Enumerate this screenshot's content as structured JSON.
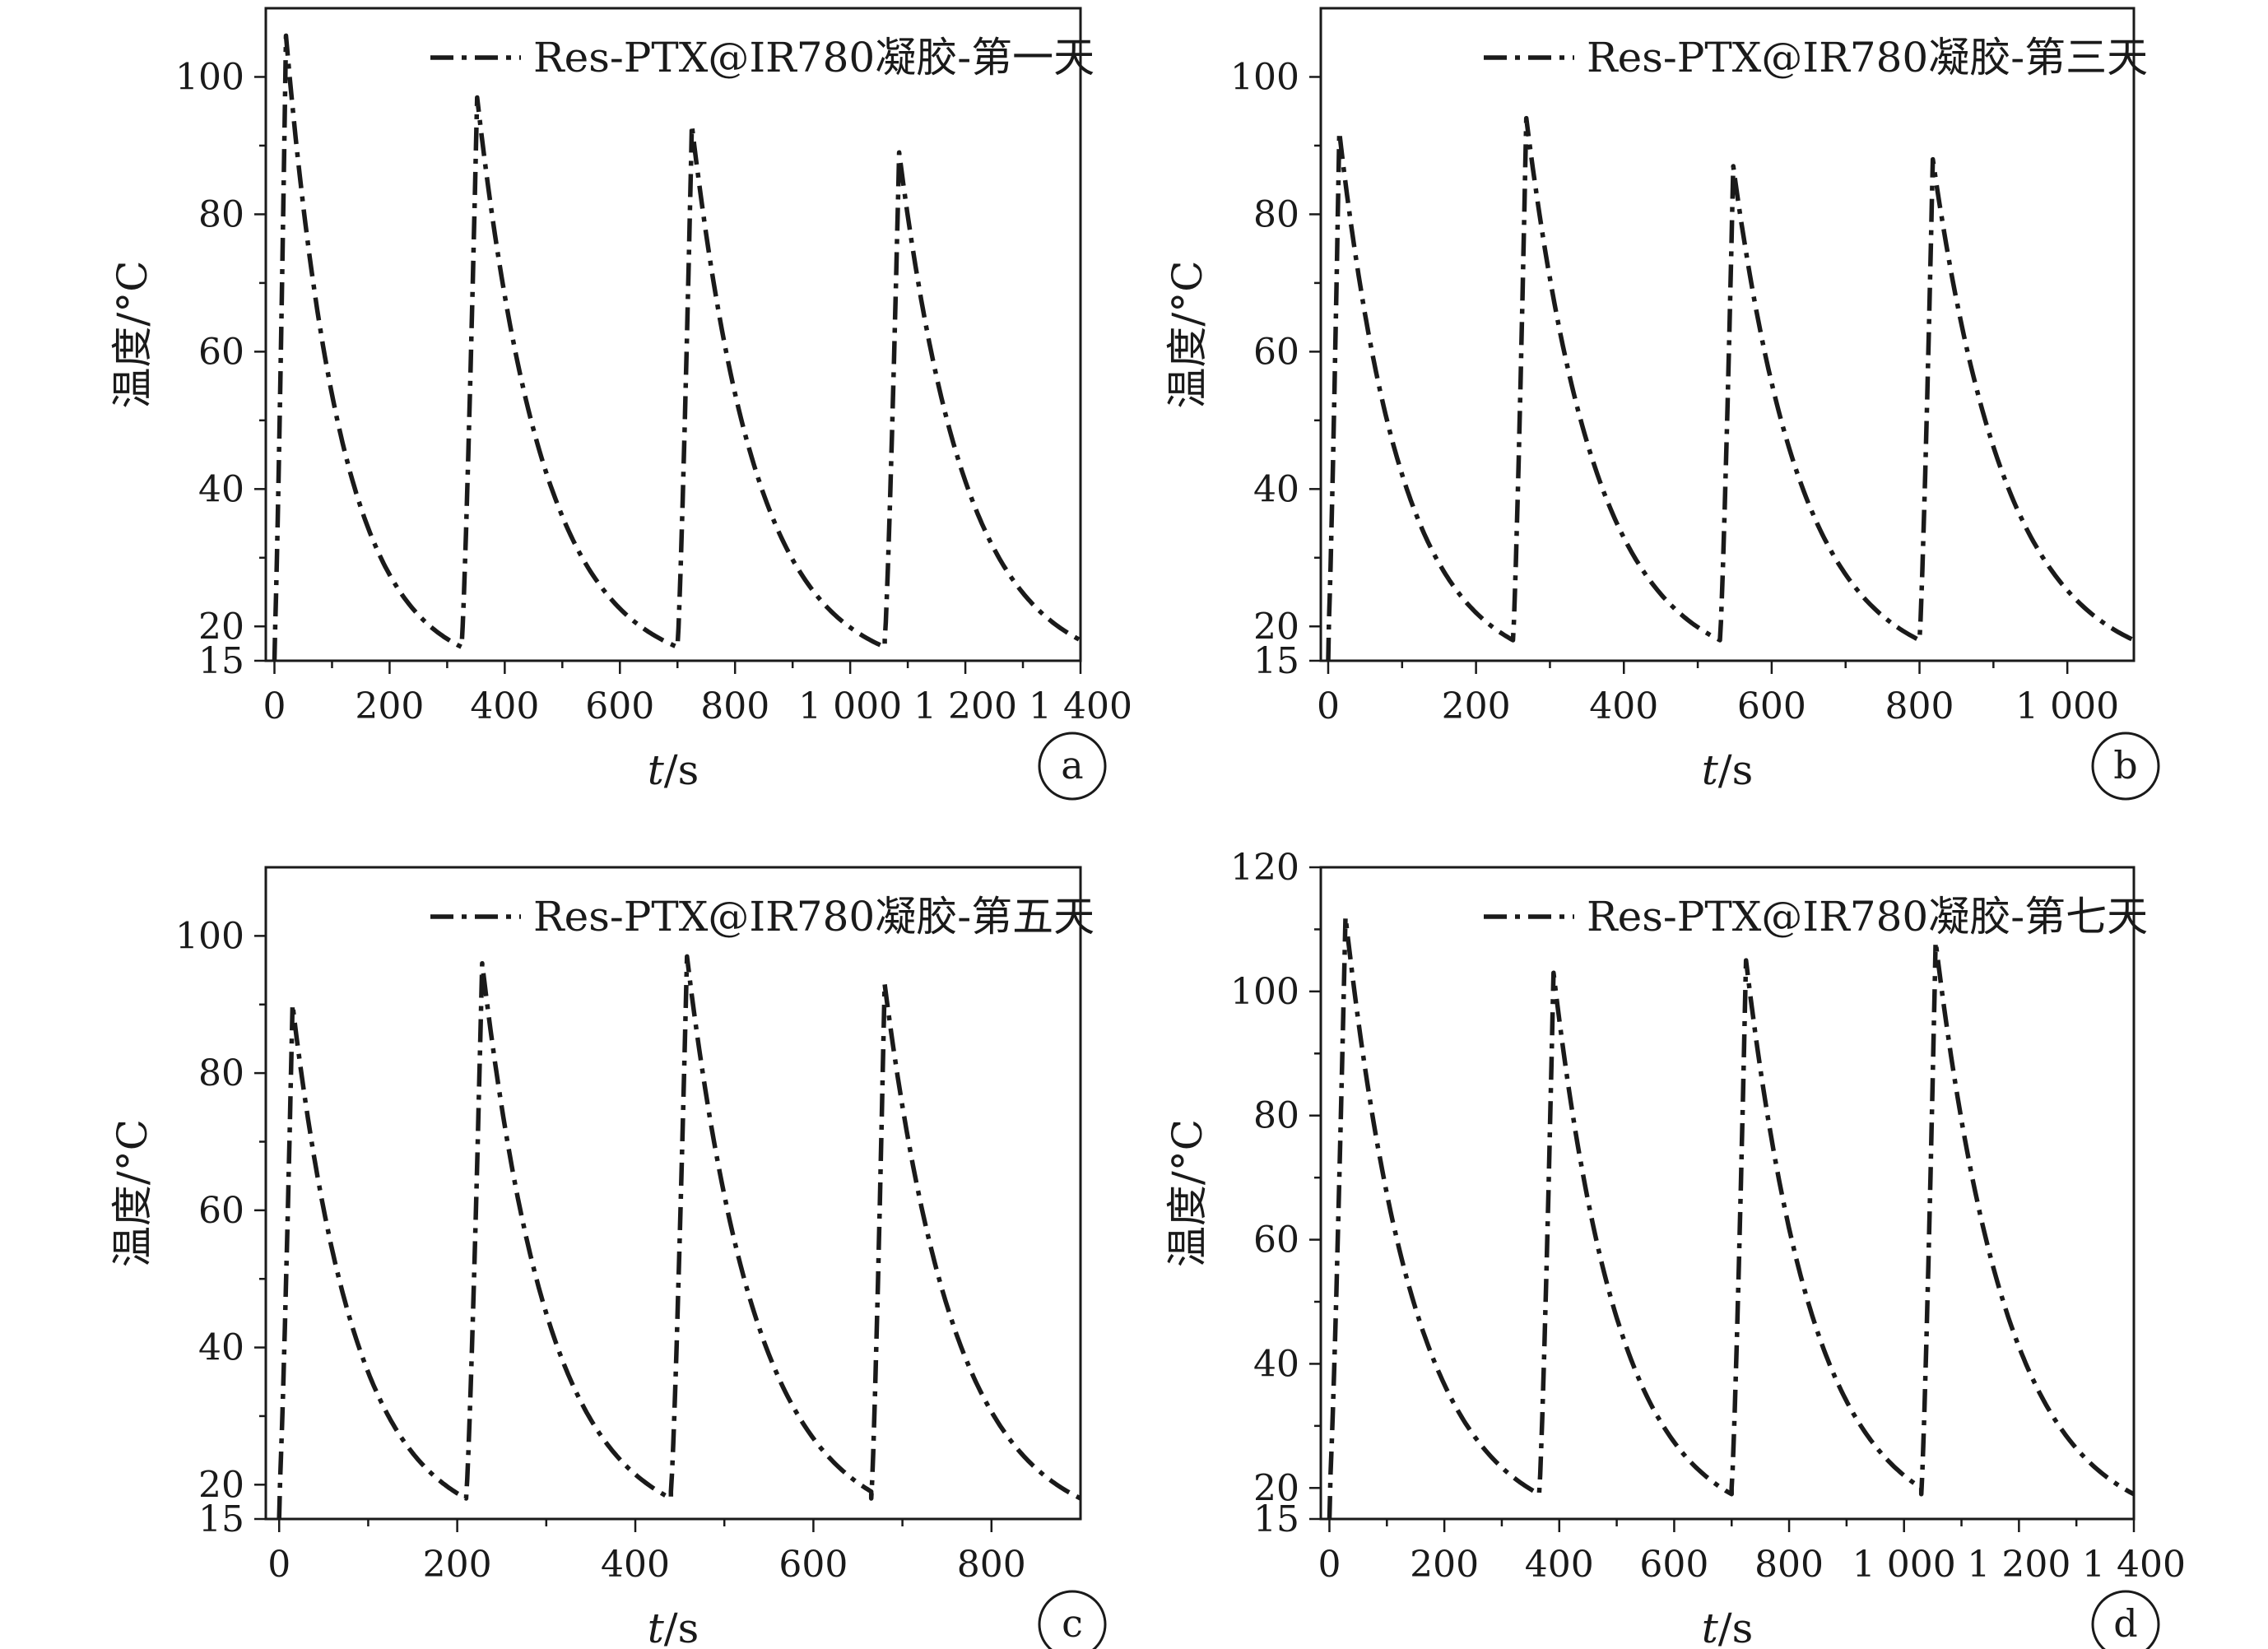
{
  "chart_data": [
    {
      "type": "line",
      "panel": "a",
      "xlabel_italic": "t",
      "xlabel_unit": "/s",
      "ylabel": "温度/°C",
      "xlim": [
        -15,
        1400
      ],
      "ylim": [
        15,
        110
      ],
      "xticks": [
        0,
        200,
        400,
        600,
        800,
        1000,
        1200,
        1400
      ],
      "xtick_labels": [
        "0",
        "200",
        "400",
        "600",
        "800",
        "1 000",
        "1 200",
        "1 400"
      ],
      "yticks": [
        15,
        20,
        40,
        60,
        80,
        100
      ],
      "ytick_labels": [
        "15",
        "20",
        "40",
        "60",
        "80",
        "100"
      ],
      "legend_loc": "top-right",
      "series": [
        {
          "name": "Res-PTX@IR780凝胶-第一天",
          "cycles": [
            {
              "t_start": 0,
              "t_peak": 20,
              "peak": 106,
              "t_end": 325,
              "end": 17
            },
            {
              "t_start": 325,
              "t_peak": 352,
              "peak": 97,
              "t_end": 700,
              "end": 17
            },
            {
              "t_start": 700,
              "t_peak": 725,
              "peak": 93,
              "t_end": 1060,
              "end": 17
            },
            {
              "t_start": 1060,
              "t_peak": 1085,
              "peak": 89,
              "t_end": 1400,
              "end": 18
            }
          ]
        }
      ]
    },
    {
      "type": "line",
      "panel": "b",
      "xlabel_italic": "t",
      "xlabel_unit": "/s",
      "ylabel": "温度/°C",
      "xlim": [
        -10,
        1090
      ],
      "ylim": [
        15,
        110
      ],
      "xticks": [
        0,
        200,
        400,
        600,
        800,
        1000
      ],
      "xtick_labels": [
        "0",
        "200",
        "400",
        "600",
        "800",
        "1 000"
      ],
      "yticks": [
        15,
        20,
        40,
        60,
        80,
        100
      ],
      "ytick_labels": [
        "15",
        "20",
        "40",
        "60",
        "80",
        "100"
      ],
      "legend_loc": "top-right",
      "series": [
        {
          "name": "Res-PTX@IR780凝胶-第三天",
          "cycles": [
            {
              "t_start": 0,
              "t_peak": 15,
              "peak": 92,
              "t_end": 250,
              "end": 18
            },
            {
              "t_start": 250,
              "t_peak": 268,
              "peak": 94,
              "t_end": 530,
              "end": 18
            },
            {
              "t_start": 530,
              "t_peak": 548,
              "peak": 87,
              "t_end": 800,
              "end": 18
            },
            {
              "t_start": 800,
              "t_peak": 818,
              "peak": 88,
              "t_end": 1090,
              "end": 18
            }
          ]
        }
      ]
    },
    {
      "type": "line",
      "panel": "c",
      "xlabel_italic": "t",
      "xlabel_unit": "/s",
      "ylabel": "温度/°C",
      "xlim": [
        -15,
        900
      ],
      "ylim": [
        15,
        110
      ],
      "xticks": [
        0,
        200,
        400,
        600,
        800
      ],
      "xtick_labels": [
        "0",
        "200",
        "400",
        "600",
        "800"
      ],
      "yticks": [
        15,
        20,
        40,
        60,
        80,
        100
      ],
      "ytick_labels": [
        "15",
        "20",
        "40",
        "60",
        "80",
        "100"
      ],
      "legend_loc": "top-right",
      "series": [
        {
          "name": "Res-PTX@IR780凝胶-第五天",
          "cycles": [
            {
              "t_start": 0,
              "t_peak": 15,
              "peak": 90,
              "t_end": 210,
              "end": 18
            },
            {
              "t_start": 210,
              "t_peak": 228,
              "peak": 96,
              "t_end": 440,
              "end": 18
            },
            {
              "t_start": 440,
              "t_peak": 458,
              "peak": 97,
              "t_end": 665,
              "end": 19
            },
            {
              "t_start": 665,
              "t_peak": 680,
              "peak": 93,
              "t_end": 900,
              "end": 18
            }
          ]
        }
      ]
    },
    {
      "type": "line",
      "panel": "d",
      "xlabel_italic": "t",
      "xlabel_unit": "/s",
      "ylabel": "温度/°C",
      "xlim": [
        -15,
        1400
      ],
      "ylim": [
        15,
        120
      ],
      "xticks": [
        0,
        200,
        400,
        600,
        800,
        1000,
        1200,
        1400
      ],
      "xtick_labels": [
        "0",
        "200",
        "400",
        "600",
        "800",
        "1 000",
        "1 200",
        "1 400"
      ],
      "yticks": [
        15,
        20,
        40,
        60,
        80,
        100,
        120
      ],
      "ytick_labels": [
        "15",
        "20",
        "40",
        "60",
        "80",
        "100",
        "120"
      ],
      "legend_loc": "top-right",
      "series": [
        {
          "name": "Res-PTX@IR780凝胶-第七天",
          "cycles": [
            {
              "t_start": 0,
              "t_peak": 28,
              "peak": 112,
              "t_end": 365,
              "end": 19
            },
            {
              "t_start": 365,
              "t_peak": 390,
              "peak": 103,
              "t_end": 700,
              "end": 19
            },
            {
              "t_start": 700,
              "t_peak": 725,
              "peak": 105,
              "t_end": 1030,
              "end": 20
            },
            {
              "t_start": 1030,
              "t_peak": 1055,
              "peak": 108,
              "t_end": 1400,
              "end": 19
            }
          ]
        }
      ]
    }
  ]
}
